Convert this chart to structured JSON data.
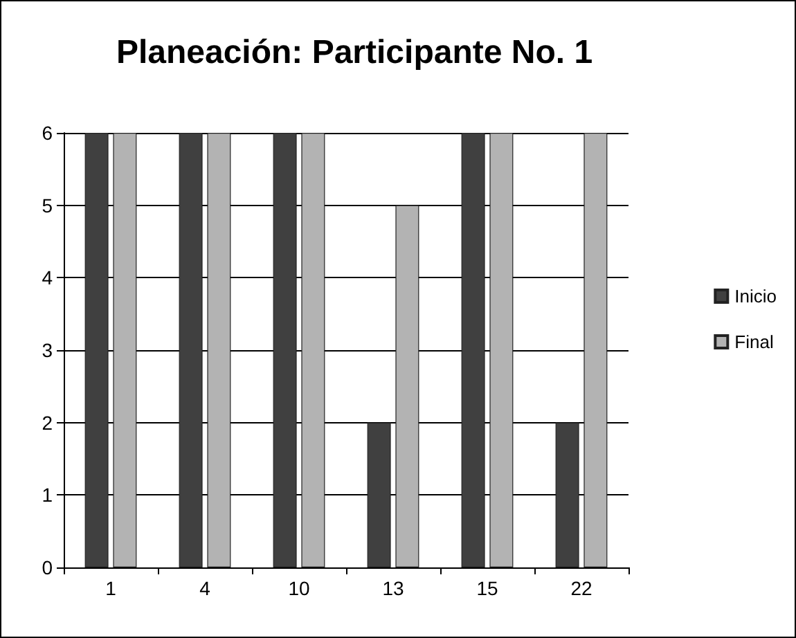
{
  "chart_data": {
    "type": "bar",
    "title": "Planeación: Participante No. 1",
    "categories": [
      "1",
      "4",
      "10",
      "13",
      "15",
      "22"
    ],
    "series": [
      {
        "name": "Inicio",
        "color": "#404040",
        "values": [
          6,
          6,
          6,
          2,
          6,
          2
        ]
      },
      {
        "name": "Final",
        "color": "#b3b3b3",
        "values": [
          6,
          6,
          6,
          5,
          6,
          6
        ]
      }
    ],
    "ylim": [
      0,
      6
    ],
    "yticks": [
      0,
      1,
      2,
      3,
      4,
      5,
      6
    ],
    "grid": "y",
    "legend": "right"
  }
}
